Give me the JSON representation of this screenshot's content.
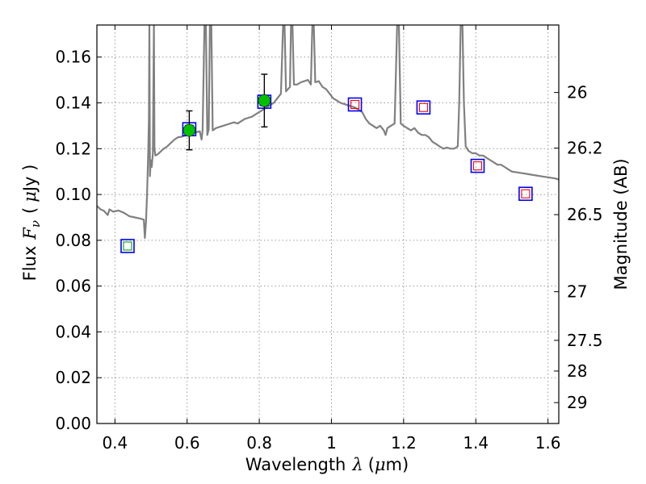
{
  "chart_data": {
    "type": "scatter",
    "title": "",
    "xlabel": {
      "prefix": "Wavelength",
      "symbol": "λ",
      "unit_open": "(",
      "unit_mu": "μ",
      "unit_rest": "m)"
    },
    "ylabel": {
      "prefix": "Flux",
      "symbol": "F",
      "subscript": "ν",
      "unit_open": "(",
      "unit_mu": "μ",
      "unit_rest": "Jy )"
    },
    "y2label": "Magnitude (AB)",
    "xlim": [
      0.35,
      1.63
    ],
    "ylim": [
      0.0,
      0.174
    ],
    "grid": true,
    "x_ticks": [
      0.4,
      0.6,
      0.8,
      1.0,
      1.2,
      1.4,
      1.6
    ],
    "x_tick_labels": [
      "0.4",
      "0.6",
      "0.8",
      "1",
      "1.2",
      "1.4",
      "1.6"
    ],
    "y_ticks": [
      0.0,
      0.02,
      0.04,
      0.06,
      0.08,
      0.1,
      0.12,
      0.14,
      0.16
    ],
    "y_tick_labels": [
      "0.00",
      "0.02",
      "0.04",
      "0.06",
      "0.08",
      "0.10",
      "0.12",
      "0.14",
      "0.16"
    ],
    "y2_ticks": [
      {
        "mag": 26,
        "label": "26"
      },
      {
        "mag": 26.2,
        "label": "26.2"
      },
      {
        "mag": 26.5,
        "label": "26.5"
      },
      {
        "mag": 27,
        "label": "27"
      },
      {
        "mag": 27.5,
        "label": "27.5"
      },
      {
        "mag": 28,
        "label": "28"
      },
      {
        "mag": 29,
        "label": "29"
      }
    ],
    "colors": {
      "spectrum": "#808080",
      "observed": "#00c000",
      "model_box": "#0000ff",
      "model_inner_red": "#ff0000",
      "model_inner_green": "#00a000",
      "grid": "#9a9a9a"
    },
    "series": [
      {
        "name": "model_spectrum",
        "kind": "line",
        "points": [
          [
            0.35,
            0.095
          ],
          [
            0.36,
            0.0935
          ],
          [
            0.37,
            0.0928
          ],
          [
            0.38,
            0.091
          ],
          [
            0.385,
            0.0935
          ],
          [
            0.395,
            0.0925
          ],
          [
            0.41,
            0.093
          ],
          [
            0.425,
            0.092
          ],
          [
            0.44,
            0.0905
          ],
          [
            0.455,
            0.09
          ],
          [
            0.47,
            0.0895
          ],
          [
            0.48,
            0.089
          ],
          [
            0.483,
            0.081
          ],
          [
            0.486,
            0.088
          ],
          [
            0.489,
            0.1
          ],
          [
            0.492,
            0.1175
          ],
          [
            0.494,
            0.133
          ],
          [
            0.4955,
            0.174
          ],
          [
            0.497,
            0.108
          ],
          [
            0.499,
            0.115
          ],
          [
            0.502,
            0.112
          ],
          [
            0.505,
            0.118
          ],
          [
            0.508,
            0.174
          ],
          [
            0.5095,
            0.12
          ],
          [
            0.512,
            0.117
          ],
          [
            0.518,
            0.1175
          ],
          [
            0.525,
            0.1185
          ],
          [
            0.535,
            0.12
          ],
          [
            0.545,
            0.121
          ],
          [
            0.555,
            0.1225
          ],
          [
            0.565,
            0.124
          ],
          [
            0.575,
            0.125
          ],
          [
            0.585,
            0.1252
          ],
          [
            0.595,
            0.1258
          ],
          [
            0.605,
            0.1262
          ],
          [
            0.615,
            0.1268
          ],
          [
            0.625,
            0.1272
          ],
          [
            0.635,
            0.1276
          ],
          [
            0.64,
            0.124
          ],
          [
            0.643,
            0.128
          ],
          [
            0.648,
            0.174
          ],
          [
            0.652,
            0.174
          ],
          [
            0.656,
            0.126
          ],
          [
            0.66,
            0.1285
          ],
          [
            0.663,
            0.174
          ],
          [
            0.667,
            0.174
          ],
          [
            0.671,
            0.128
          ],
          [
            0.68,
            0.129
          ],
          [
            0.69,
            0.1295
          ],
          [
            0.7,
            0.13
          ],
          [
            0.71,
            0.1305
          ],
          [
            0.72,
            0.131
          ],
          [
            0.73,
            0.1315
          ],
          [
            0.74,
            0.131
          ],
          [
            0.75,
            0.132
          ],
          [
            0.76,
            0.133
          ],
          [
            0.77,
            0.1335
          ],
          [
            0.78,
            0.134
          ],
          [
            0.79,
            0.135
          ],
          [
            0.8,
            0.136
          ],
          [
            0.81,
            0.137
          ],
          [
            0.82,
            0.138
          ],
          [
            0.83,
            0.139
          ],
          [
            0.84,
            0.14
          ],
          [
            0.85,
            0.142
          ],
          [
            0.86,
            0.144
          ],
          [
            0.866,
            0.174
          ],
          [
            0.87,
            0.174
          ],
          [
            0.874,
            0.145
          ],
          [
            0.885,
            0.147
          ],
          [
            0.888,
            0.174
          ],
          [
            0.892,
            0.174
          ],
          [
            0.896,
            0.148
          ],
          [
            0.905,
            0.148
          ],
          [
            0.915,
            0.149
          ],
          [
            0.925,
            0.1495
          ],
          [
            0.935,
            0.15
          ],
          [
            0.943,
            0.148
          ],
          [
            0.947,
            0.174
          ],
          [
            0.951,
            0.174
          ],
          [
            0.955,
            0.149
          ],
          [
            0.965,
            0.1495
          ],
          [
            0.975,
            0.147
          ],
          [
            0.985,
            0.146
          ],
          [
            0.995,
            0.144
          ],
          [
            1.005,
            0.142
          ],
          [
            1.015,
            0.141
          ],
          [
            1.025,
            0.14
          ],
          [
            1.035,
            0.1395
          ],
          [
            1.045,
            0.139
          ],
          [
            1.055,
            0.1385
          ],
          [
            1.065,
            0.138
          ],
          [
            1.075,
            0.137
          ],
          [
            1.085,
            0.136
          ],
          [
            1.095,
            0.133
          ],
          [
            1.105,
            0.131
          ],
          [
            1.115,
            0.13
          ],
          [
            1.125,
            0.129
          ],
          [
            1.135,
            0.13
          ],
          [
            1.145,
            0.128
          ],
          [
            1.15,
            0.126
          ],
          [
            1.155,
            0.129
          ],
          [
            1.165,
            0.13
          ],
          [
            1.175,
            0.131
          ],
          [
            1.182,
            0.174
          ],
          [
            1.187,
            0.174
          ],
          [
            1.192,
            0.131
          ],
          [
            1.2,
            0.13
          ],
          [
            1.21,
            0.129
          ],
          [
            1.22,
            0.128
          ],
          [
            1.23,
            0.129
          ],
          [
            1.24,
            0.127
          ],
          [
            1.25,
            0.126
          ],
          [
            1.26,
            0.126
          ],
          [
            1.27,
            0.125
          ],
          [
            1.28,
            0.123
          ],
          [
            1.29,
            0.122
          ],
          [
            1.3,
            0.121
          ],
          [
            1.31,
            0.12
          ],
          [
            1.32,
            0.1205
          ],
          [
            1.33,
            0.12
          ],
          [
            1.34,
            0.12
          ],
          [
            1.35,
            0.121
          ],
          [
            1.354,
            0.14
          ],
          [
            1.358,
            0.174
          ],
          [
            1.363,
            0.174
          ],
          [
            1.367,
            0.14
          ],
          [
            1.372,
            0.121
          ],
          [
            1.38,
            0.119
          ],
          [
            1.39,
            0.118
          ],
          [
            1.4,
            0.118
          ],
          [
            1.41,
            0.117
          ],
          [
            1.42,
            0.117
          ],
          [
            1.43,
            0.116
          ],
          [
            1.44,
            0.115
          ],
          [
            1.45,
            0.114
          ],
          [
            1.46,
            0.113
          ],
          [
            1.47,
            0.113
          ],
          [
            1.48,
            0.112
          ],
          [
            1.49,
            0.111
          ],
          [
            1.5,
            0.11
          ],
          [
            1.52,
            0.1095
          ],
          [
            1.54,
            0.109
          ],
          [
            1.56,
            0.1085
          ],
          [
            1.58,
            0.108
          ],
          [
            1.6,
            0.1075
          ],
          [
            1.62,
            0.107
          ],
          [
            1.63,
            0.1065
          ]
        ]
      },
      {
        "name": "observed_photometry",
        "kind": "points_with_errors",
        "points": [
          {
            "x": 0.606,
            "y": 0.128,
            "yerr": 0.0085
          },
          {
            "x": 0.814,
            "y": 0.141,
            "yerr": 0.0115
          }
        ]
      },
      {
        "name": "model_photometry",
        "kind": "squares",
        "points": [
          {
            "x": 0.435,
            "y": 0.0775,
            "inner": "green"
          },
          {
            "x": 0.606,
            "y": 0.1285,
            "inner": "green"
          },
          {
            "x": 0.814,
            "y": 0.1405,
            "inner": "green"
          },
          {
            "x": 1.065,
            "y": 0.1393,
            "inner": "red"
          },
          {
            "x": 1.255,
            "y": 0.138,
            "inner": "red"
          },
          {
            "x": 1.405,
            "y": 0.1125,
            "inner": "red"
          },
          {
            "x": 1.538,
            "y": 0.1003,
            "inner": "red"
          }
        ]
      }
    ]
  }
}
